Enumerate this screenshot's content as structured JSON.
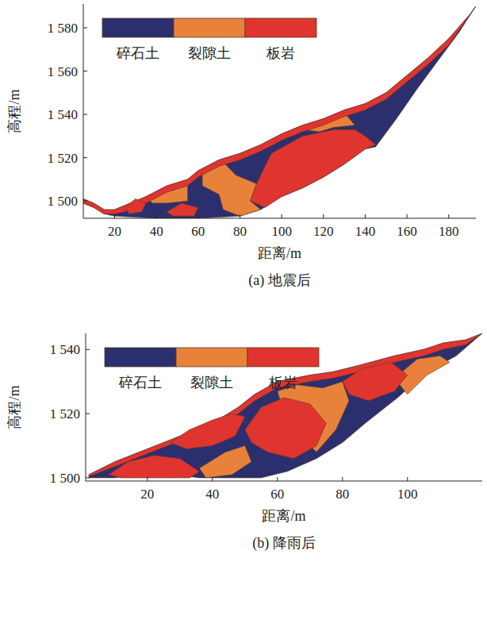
{
  "chart_data": [
    {
      "type": "area",
      "title": "(a) 地震后",
      "x_label": "距离/m",
      "y_label": "高程/m",
      "xlim": [
        5,
        193
      ],
      "ylim": [
        1492,
        1591
      ],
      "xticks": [
        20,
        40,
        60,
        80,
        100,
        120,
        140,
        160,
        180
      ],
      "yticks": [
        {
          "value": 1500,
          "label": "1 500"
        },
        {
          "value": 1520,
          "label": "1 520"
        },
        {
          "value": 1540,
          "label": "1 540"
        },
        {
          "value": 1560,
          "label": "1 560"
        },
        {
          "value": 1580,
          "label": "1 580"
        }
      ],
      "legend": "upper left",
      "series": [
        {
          "name": "碎石土",
          "color": "#2b2f6e",
          "polygons": [
            {
              "x": [
                5,
                10,
                15,
                20,
                25,
                35,
                45,
                55,
                60,
                70,
                80,
                90,
                100,
                110,
                120,
                130,
                140,
                150,
                160,
                170,
                180,
                190,
                193,
                185,
                175,
                165,
                155,
                145,
                140,
                130,
                120,
                110,
                100,
                90,
                80,
                60,
                40,
                20,
                15,
                10,
                5
              ],
              "y": [
                1501,
                1499,
                1496,
                1496,
                1498,
                1502,
                1507,
                1510,
                1514,
                1519,
                1522,
                1526,
                1531,
                1535,
                1538,
                1542,
                1545,
                1550,
                1558,
                1566,
                1575,
                1586,
                1590,
                1578,
                1565,
                1552,
                1538,
                1525,
                1524,
                1517,
                1511,
                1506,
                1502,
                1496,
                1493,
                1492,
                1492,
                1493,
                1494,
                1497,
                1499
              ]
            }
          ]
        },
        {
          "name": "裂隙土",
          "color": "#e8823a",
          "polygons": [
            {
              "x": [
                62,
                72,
                78,
                88,
                85,
                90,
                80,
                72,
                70,
                62
              ],
              "y": [
                1515,
                1518,
                1512,
                1508,
                1500,
                1496,
                1493,
                1496,
                1503,
                1507
              ]
            },
            {
              "x": [
                110,
                120,
                130,
                135,
                125,
                118
              ],
              "y": [
                1533,
                1537,
                1541,
                1535,
                1534,
                1532
              ]
            },
            {
              "x": [
                35,
                45,
                55,
                55,
                45,
                38
              ],
              "y": [
                1502,
                1506,
                1508,
                1500,
                1499,
                1499
              ]
            }
          ]
        },
        {
          "name": "板岩",
          "color": "#e0342e",
          "polygons": [
            {
              "x": [
                5,
                10,
                15,
                20,
                25,
                35,
                45,
                55,
                60,
                70,
                80,
                90,
                100,
                110,
                120,
                130,
                140,
                150,
                160,
                170,
                180,
                190,
                193,
                188,
                180,
                170,
                160,
                150,
                140,
                130,
                120,
                110,
                100,
                90,
                80,
                70,
                60,
                55,
                45,
                35,
                25,
                20,
                15,
                10,
                5
              ],
              "y": [
                1501,
                1499,
                1496,
                1496,
                1498,
                1502,
                1507,
                1510,
                1514,
                1519,
                1522,
                1526,
                1531,
                1535,
                1538,
                1542,
                1545,
                1550,
                1558,
                1566,
                1575,
                1586,
                1590,
                1583,
                1572,
                1563,
                1555,
                1547,
                1542,
                1539,
                1535,
                1532,
                1528,
                1523,
                1519,
                1516,
                1511,
                1507,
                1504,
                1499,
                1495,
                1494,
                1494,
                1497,
                1499
              ]
            },
            {
              "x": [
                88,
                95,
                110,
                125,
                135,
                140,
                145,
                140,
                130,
                120,
                110,
                100,
                92,
                85
              ],
              "y": [
                1508,
                1522,
                1530,
                1533,
                1533,
                1530,
                1526,
                1524,
                1517,
                1511,
                1506,
                1502,
                1497,
                1500
              ]
            },
            {
              "x": [
                25,
                30,
                35,
                33,
                27
              ],
              "y": [
                1497,
                1501,
                1499,
                1495,
                1494
              ]
            },
            {
              "x": [
                45,
                52,
                60,
                58,
                48
              ],
              "y": [
                1495,
                1499,
                1497,
                1493,
                1493
              ]
            }
          ]
        }
      ]
    },
    {
      "type": "area",
      "title": "(b) 降雨后",
      "x_label": "距离/m",
      "y_label": "高程/m",
      "xlim": [
        1,
        123
      ],
      "ylim": [
        1499,
        1545
      ],
      "xticks": [
        20,
        40,
        60,
        80,
        100
      ],
      "yticks": [
        {
          "value": 1500,
          "label": "1 500"
        },
        {
          "value": 1520,
          "label": "1 520"
        },
        {
          "value": 1540,
          "label": "1 540"
        }
      ],
      "legend": "upper left",
      "series": [
        {
          "name": "碎石土",
          "color": "#2b2f6e",
          "polygons": [
            {
              "x": [
                2,
                10,
                20,
                30,
                40,
                48,
                53,
                60,
                70,
                77,
                85,
                96,
                105,
                111,
                118,
                123,
                115,
                106,
                97,
                87,
                80,
                72,
                63,
                55,
                45,
                36,
                28,
                19,
                10,
                2
              ],
              "y": [
                1501,
                1505,
                1509,
                1513,
                1517,
                1522,
                1526,
                1530,
                1532,
                1533,
                1535,
                1538,
                1540,
                1542,
                1543,
                1545,
                1538,
                1533,
                1525,
                1517,
                1511,
                1506,
                1502,
                1500,
                1500,
                1500,
                1501,
                1501,
                1500,
                1500
              ]
            }
          ]
        },
        {
          "name": "裂隙土",
          "color": "#e8823a",
          "polygons": [
            {
              "x": [
                60,
                66,
                74,
                80,
                82,
                78,
                72,
                68,
                62
              ],
              "y": [
                1527,
                1529,
                1528,
                1530,
                1524,
                1515,
                1508,
                1512,
                1520
              ]
            },
            {
              "x": [
                96,
                103,
                110,
                113,
                106,
                100
              ],
              "y": [
                1531,
                1537,
                1538,
                1536,
                1532,
                1526
              ]
            },
            {
              "x": [
                36,
                44,
                50,
                52,
                46,
                38
              ],
              "y": [
                1503,
                1508,
                1510,
                1505,
                1501,
                1500
              ]
            }
          ]
        },
        {
          "name": "板岩",
          "color": "#e0342e",
          "polygons": [
            {
              "x": [
                2,
                10,
                20,
                30,
                40,
                48,
                53,
                60,
                70,
                77,
                85,
                96,
                105,
                111,
                118,
                123,
                118,
                111,
                105,
                96,
                85,
                77,
                70,
                60,
                53,
                48,
                40,
                30,
                20,
                10,
                2
              ],
              "y": [
                1501,
                1505,
                1509,
                1513,
                1517,
                1522,
                1526,
                1530,
                1532,
                1533,
                1535,
                1538,
                1540,
                1542,
                1543,
                1545,
                1541.5,
                1540,
                1538,
                1536,
                1533,
                1531,
                1530,
                1528,
                1524,
                1520,
                1515,
                1511.5,
                1507.5,
                1503.5,
                1500.5
              ]
            },
            {
              "x": [
                8,
                14,
                22,
                30,
                36,
                33,
                22,
                12
              ],
              "y": [
                1501,
                1505,
                1507,
                1506,
                1502,
                1500,
                1500,
                1500
              ]
            },
            {
              "x": [
                27,
                33,
                40,
                46,
                50,
                47,
                40,
                32
              ],
              "y": [
                1511,
                1515,
                1518,
                1520,
                1519,
                1513,
                1510,
                1509
              ]
            },
            {
              "x": [
                50,
                55,
                62,
                70,
                75,
                72,
                65,
                57,
                52
              ],
              "y": [
                1515,
                1522,
                1525,
                1523,
                1517,
                1510,
                1506,
                1508,
                1511
              ]
            },
            {
              "x": [
                80,
                86,
                95,
                100,
                96,
                88,
                82
              ],
              "y": [
                1530,
                1534,
                1536,
                1532,
                1527,
                1524,
                1526
              ]
            }
          ]
        }
      ]
    }
  ]
}
